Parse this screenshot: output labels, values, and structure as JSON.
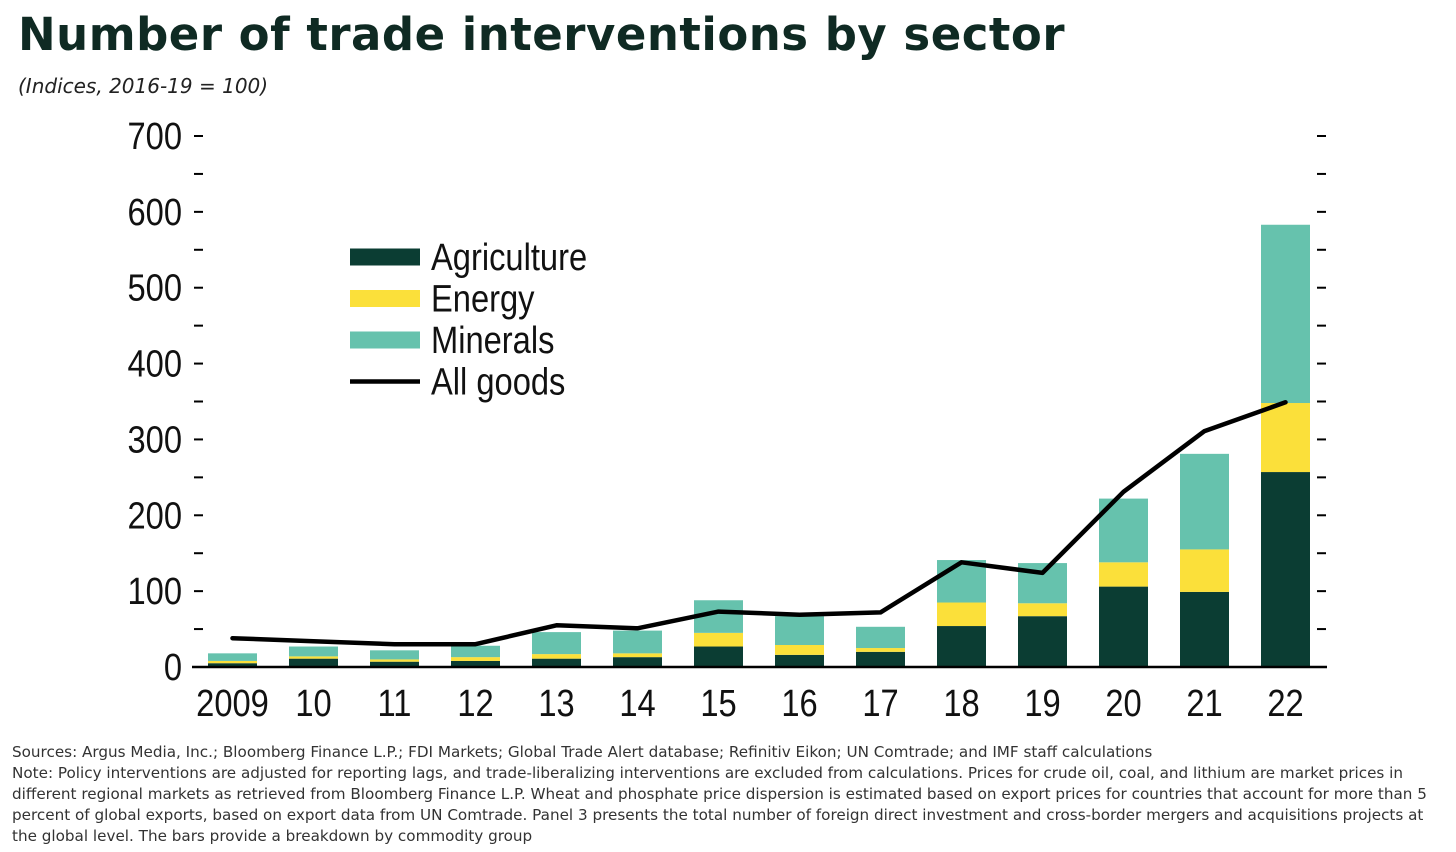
{
  "title": "Number of trade interventions by sector",
  "subtitle": "(Indices, 2016-19 = 100)",
  "colors": {
    "agriculture": "#0b3d33",
    "energy": "#fbe03a",
    "minerals": "#66c2ad",
    "all_goods": "#000000",
    "axis": "#000000",
    "title": "#0f2a23"
  },
  "chart_data": {
    "type": "bar",
    "stacked": true,
    "categories": [
      "2009",
      "10",
      "11",
      "12",
      "13",
      "14",
      "15",
      "16",
      "17",
      "18",
      "19",
      "20",
      "21",
      "22"
    ],
    "series": [
      {
        "name": "Agriculture",
        "type": "bar",
        "values": [
          5,
          11,
          7,
          8,
          11,
          13,
          27,
          16,
          20,
          54,
          67,
          106,
          99,
          257
        ]
      },
      {
        "name": "Energy",
        "type": "bar",
        "values": [
          3,
          3,
          3,
          5,
          6,
          5,
          18,
          13,
          5,
          31,
          17,
          32,
          56,
          91
        ]
      },
      {
        "name": "Minerals",
        "type": "bar",
        "values": [
          10,
          13,
          12,
          15,
          29,
          30,
          43,
          38,
          28,
          56,
          53,
          84,
          126,
          235
        ]
      },
      {
        "name": "All goods",
        "type": "line",
        "values": [
          38,
          34,
          30,
          30,
          55,
          51,
          73,
          69,
          72,
          138,
          124,
          231,
          311,
          349
        ]
      }
    ],
    "xlabel": "",
    "ylabel": "",
    "ylim": [
      0,
      700
    ],
    "yticks": [
      0,
      100,
      200,
      300,
      400,
      500,
      600,
      700
    ],
    "ytick_labels": [
      "0",
      "100",
      "200",
      "300",
      "400",
      "500",
      "600",
      "700"
    ],
    "legend": {
      "position": "upper-left",
      "entries": [
        "Agriculture",
        "Energy",
        "Minerals",
        "All goods"
      ]
    },
    "grid": false
  },
  "notes": {
    "sources": "Sources: Argus Media, Inc.; Bloomberg Finance L.P.; FDI Markets; Global Trade Alert database; Refinitiv Eikon; UN Comtrade; and IMF staff calculations",
    "note": "Note: Policy interventions are adjusted for reporting lags, and trade-liberalizing interventions are excluded from calculations. Prices for crude oil, coal, and lithium are market prices in different regional markets as retrieved from Bloomberg Finance L.P. Wheat and phosphate price dispersion is estimated based on export prices for countries that account for more than 5 percent of global exports, based on export data from UN Comtrade. Panel 3 presents the total number of foreign direct investment and cross-border mergers and acquisitions projects at the global level. The bars provide a breakdown by commodity group"
  }
}
